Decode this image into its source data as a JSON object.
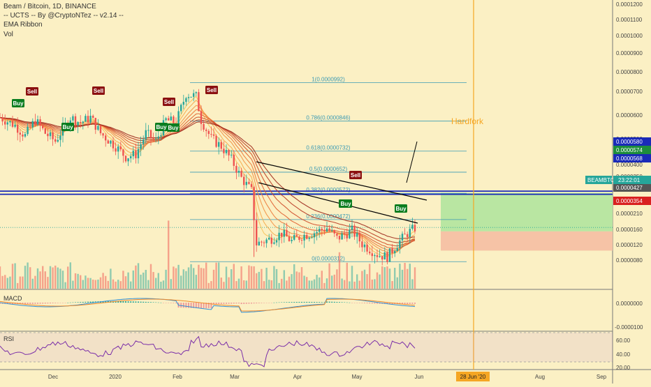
{
  "header": {
    "title": "Beam / Bitcoin, 1D, BINANCE",
    "indicator_1": "-- UCTS -- By @CryptoNTez -- v2.14 --",
    "indicator_2": "EMA Ribbon",
    "indicator_3": "Vol"
  },
  "panes": {
    "macd_label": "MACD",
    "rsi_label": "RSI"
  },
  "colors": {
    "background": "#fbf0c4",
    "buy": "#0a7d1f",
    "sell": "#8b1010",
    "up_candle": "#26a69a",
    "down_candle": "#ef5350",
    "fib": "#3a9ab3",
    "hardfork": "#f5a623",
    "blue_line": "#1a2ab8",
    "target_zone": "#b9e6a2",
    "stop_zone": "#f6c3a6",
    "rsi": "#7b2fa8",
    "macd": "#2f8fd6",
    "signal": "#ef8a2a"
  },
  "chart_data": {
    "type": "candlestick",
    "symbol": "BEAMBTC",
    "timeframe": "1D",
    "exchange": "BINANCE",
    "x_tick_labels": [
      "Dec",
      "2020",
      "Feb",
      "Mar",
      "Apr",
      "May",
      "Jun",
      "Aug",
      "Sep"
    ],
    "y_tick_labels": [
      "0.0001200",
      "0.0001100",
      "0.0001000",
      "0.0000900",
      "0.0000800",
      "0.0000700",
      "0.0000600",
      "0.0000500",
      "0.0000400",
      "0.0000350",
      "0.0000300",
      "0.0000260",
      "0.0000210",
      "0.0000160",
      "0.0000120",
      "0.0000080"
    ],
    "fib_levels": [
      {
        "label": "1(0.0000992)",
        "value": 9.92e-05
      },
      {
        "label": "0.786(0.0000846)",
        "value": 8.46e-05
      },
      {
        "label": "0.618(0.0000732)",
        "value": 7.32e-05
      },
      {
        "label": "0.5(0.0000652)",
        "value": 6.52e-05
      },
      {
        "label": "0.382(0.0000572)",
        "value": 5.72e-05
      },
      {
        "label": "0.236(0.0000472)",
        "value": 4.72e-05
      },
      {
        "label": "0(0.0000312)",
        "value": 3.12e-05
      }
    ],
    "price_labels": [
      {
        "text": "0.0000580",
        "kind": "blue"
      },
      {
        "text": "0.0000574",
        "kind": "green"
      },
      {
        "text": "0.0000568",
        "kind": "blue"
      },
      {
        "text": "BEAMBTC",
        "kind": "current"
      },
      {
        "text": "23:22:01",
        "kind": "current"
      },
      {
        "text": "0.0000427",
        "kind": "grey"
      },
      {
        "text": "0.0000354",
        "kind": "red"
      }
    ],
    "event": {
      "label": "Hardfork",
      "date_label": "28 Jun '20"
    },
    "signals": [
      {
        "type": "Sell",
        "x_day": 9
      },
      {
        "type": "Buy",
        "x_day": 4
      },
      {
        "type": "Buy",
        "x_day": 20
      },
      {
        "type": "Sell",
        "x_day": 29
      },
      {
        "type": "Sell",
        "x_day": 52
      },
      {
        "type": "Buy",
        "x_day": 51
      },
      {
        "type": "Buy",
        "x_day": 55
      },
      {
        "type": "Sell",
        "x_day": 69
      },
      {
        "type": "Buy",
        "x_day": 68
      },
      {
        "type": "Sell",
        "x_day": 140
      },
      {
        "type": "Buy",
        "x_day": 136
      },
      {
        "type": "Buy",
        "x_day": 158
      }
    ],
    "macd_ticks": [
      "0.0000000",
      "-0.0000100"
    ],
    "rsi_ticks": [
      "60.00",
      "40.00",
      "20.00"
    ]
  }
}
